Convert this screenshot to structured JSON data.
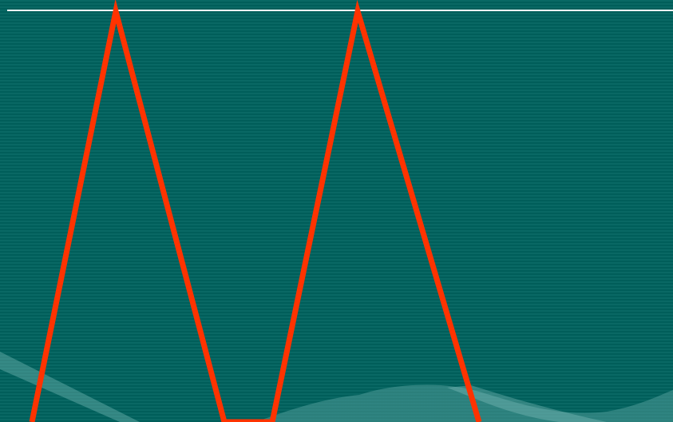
{
  "slide": {
    "background_color": "#00625e",
    "rule_color": "#ffffff",
    "zigzag_color": "#ff3300",
    "wave_color": "#5fa8a5"
  }
}
